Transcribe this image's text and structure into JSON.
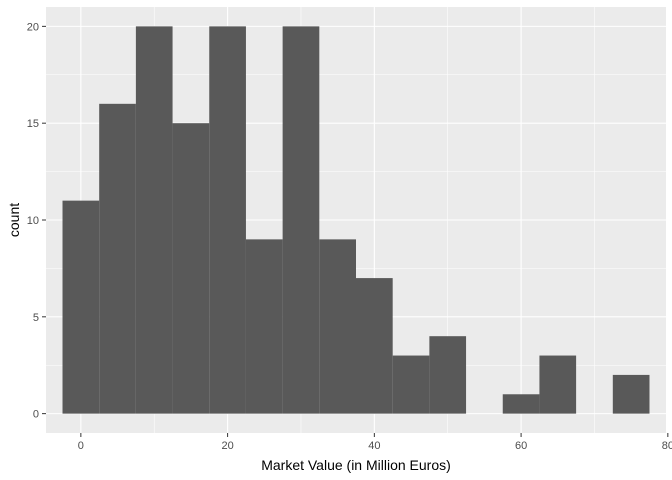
{
  "chart_data": {
    "type": "bar",
    "subtype": "histogram",
    "title": "",
    "xlabel": "Market Value (in Million Euros)",
    "ylabel": "count",
    "xlim": [
      -4.75,
      79.75
    ],
    "ylim": [
      -1,
      21
    ],
    "x_ticks": [
      0,
      20,
      40,
      60,
      80
    ],
    "y_ticks": [
      0,
      5,
      10,
      15,
      20
    ],
    "grid": true,
    "bar_color": "#595959",
    "panel_color": "#EBEBEB",
    "grid_color": "#FFFFFF",
    "bins": [
      {
        "x0": -2.5,
        "x1": 2.5,
        "count": 11
      },
      {
        "x0": 2.5,
        "x1": 7.5,
        "count": 16
      },
      {
        "x0": 7.5,
        "x1": 12.5,
        "count": 20
      },
      {
        "x0": 12.5,
        "x1": 17.5,
        "count": 15
      },
      {
        "x0": 17.5,
        "x1": 22.5,
        "count": 20
      },
      {
        "x0": 22.5,
        "x1": 27.5,
        "count": 9
      },
      {
        "x0": 27.5,
        "x1": 32.5,
        "count": 20
      },
      {
        "x0": 32.5,
        "x1": 37.5,
        "count": 9
      },
      {
        "x0": 37.5,
        "x1": 42.5,
        "count": 7
      },
      {
        "x0": 42.5,
        "x1": 47.5,
        "count": 3
      },
      {
        "x0": 47.5,
        "x1": 52.5,
        "count": 4
      },
      {
        "x0": 52.5,
        "x1": 57.5,
        "count": 0
      },
      {
        "x0": 57.5,
        "x1": 62.5,
        "count": 1
      },
      {
        "x0": 62.5,
        "x1": 67.5,
        "count": 3
      },
      {
        "x0": 67.5,
        "x1": 72.5,
        "count": 0
      },
      {
        "x0": 72.5,
        "x1": 77.5,
        "count": 2
      }
    ]
  }
}
